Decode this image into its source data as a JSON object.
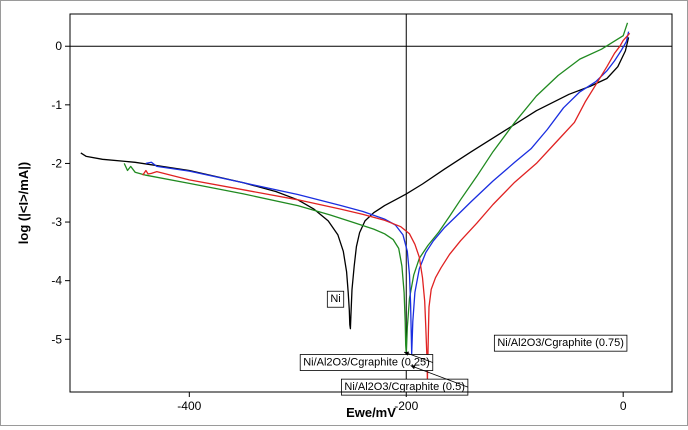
{
  "chart_data": {
    "type": "line",
    "title": "",
    "xlabel": "Ewe/mV",
    "ylabel": "log (|<I>/mA|)",
    "xlim": [
      -510,
      45
    ],
    "ylim": [
      -5.9,
      0.55
    ],
    "x_ticks": [
      -400,
      -200,
      0
    ],
    "x_tick_labels": [
      "-400",
      "-200",
      "0"
    ],
    "y_ticks": [
      0,
      -1,
      -2,
      -3,
      -4,
      -5
    ],
    "y_tick_labels": [
      "0",
      "-1",
      "-2",
      "-3",
      "-4",
      "-5"
    ],
    "grid": "major lines at x = -200 and y = 0",
    "legend": "none; series labeled by boxed annotations",
    "series": [
      {
        "name": "Ni",
        "color": "#000000",
        "x": [
          -500,
          -495,
          -480,
          -450,
          -400,
          -350,
          -320,
          -300,
          -285,
          -272,
          -263,
          -258,
          -255,
          -253.5,
          -252.5,
          -252,
          -251.5,
          -251,
          -250,
          -248,
          -246,
          -243,
          -238,
          -230,
          -220,
          -210,
          -200,
          -185,
          -165,
          -140,
          -110,
          -80,
          -50,
          -30,
          -15,
          -5,
          2,
          5
        ],
        "y": [
          -1.82,
          -1.88,
          -1.93,
          -1.98,
          -2.12,
          -2.33,
          -2.48,
          -2.62,
          -2.78,
          -2.98,
          -3.22,
          -3.5,
          -3.85,
          -4.2,
          -4.5,
          -4.75,
          -4.82,
          -4.6,
          -4.15,
          -3.75,
          -3.42,
          -3.18,
          -2.98,
          -2.84,
          -2.72,
          -2.62,
          -2.52,
          -2.35,
          -2.1,
          -1.8,
          -1.45,
          -1.1,
          -0.82,
          -0.68,
          -0.55,
          -0.35,
          -0.08,
          0.15
        ]
      },
      {
        "name": "Ni/Al2O3/Cgraphite (0.25)",
        "color": "#208a20",
        "x": [
          -460,
          -457,
          -454,
          -450,
          -440,
          -400,
          -350,
          -300,
          -270,
          -250,
          -230,
          -220,
          -212,
          -207,
          -204,
          -202,
          -201,
          -200.5,
          -200,
          -199,
          -197,
          -193,
          -188,
          -180,
          -170,
          -160,
          -150,
          -135,
          -120,
          -100,
          -80,
          -60,
          -40,
          -20,
          0,
          4
        ],
        "y": [
          -2.0,
          -2.12,
          -2.05,
          -2.15,
          -2.2,
          -2.34,
          -2.52,
          -2.72,
          -2.88,
          -3.0,
          -3.12,
          -3.2,
          -3.3,
          -3.45,
          -3.75,
          -4.2,
          -4.7,
          -5.1,
          -5.25,
          -4.8,
          -4.3,
          -3.9,
          -3.62,
          -3.4,
          -3.17,
          -2.9,
          -2.62,
          -2.22,
          -1.8,
          -1.3,
          -0.85,
          -0.5,
          -0.22,
          -0.05,
          0.18,
          0.4
        ]
      },
      {
        "name": "Ni/Al2O3/Cgraphite (0.5)",
        "color": "#1a2ee0",
        "x": [
          -440,
          -435,
          -430,
          -400,
          -350,
          -300,
          -260,
          -240,
          -220,
          -210,
          -203,
          -199,
          -197,
          -196,
          -195.5,
          -195,
          -194,
          -192,
          -188,
          -182,
          -175,
          -165,
          -155,
          -140,
          -120,
          -100,
          -85,
          -70,
          -55,
          -40,
          -25,
          -15,
          -8,
          -2,
          3,
          5
        ],
        "y": [
          -2.0,
          -1.98,
          -2.05,
          -2.13,
          -2.33,
          -2.53,
          -2.72,
          -2.82,
          -2.95,
          -3.05,
          -3.22,
          -3.5,
          -3.9,
          -4.4,
          -4.8,
          -5.25,
          -4.7,
          -4.2,
          -3.8,
          -3.52,
          -3.32,
          -3.1,
          -2.92,
          -2.65,
          -2.3,
          -1.98,
          -1.75,
          -1.42,
          -1.05,
          -0.78,
          -0.6,
          -0.42,
          -0.25,
          -0.08,
          0.08,
          0.25
        ]
      },
      {
        "name": "Ni/Al2O3/Cgraphite (0.75)",
        "color": "#e02222",
        "x": [
          -443,
          -440,
          -438,
          -435,
          -430,
          -400,
          -350,
          -300,
          -260,
          -240,
          -220,
          -205,
          -197,
          -192,
          -188,
          -185,
          -183,
          -182,
          -181,
          -180.5,
          -180,
          -179.5,
          -179,
          -177,
          -173,
          -168,
          -160,
          -150,
          -135,
          -120,
          -100,
          -80,
          -60,
          -45,
          -35,
          -25,
          -15,
          -8,
          -3,
          0,
          4,
          6
        ],
        "y": [
          -2.2,
          -2.12,
          -2.18,
          -2.17,
          -2.14,
          -2.28,
          -2.45,
          -2.62,
          -2.78,
          -2.87,
          -2.97,
          -3.08,
          -3.2,
          -3.38,
          -3.6,
          -3.95,
          -4.35,
          -4.8,
          -5.3,
          -5.7,
          -5.3,
          -4.8,
          -4.45,
          -4.15,
          -3.95,
          -3.78,
          -3.55,
          -3.32,
          -3.02,
          -2.7,
          -2.32,
          -2.0,
          -1.6,
          -1.3,
          -0.95,
          -0.65,
          -0.35,
          -0.12,
          0.0,
          0.1,
          0.18,
          0.22
        ]
      }
    ],
    "annotations": [
      {
        "text": "Ni",
        "x": -270,
        "y": -4.3
      },
      {
        "text": "Ni/Al2O3/Cgraphite (0.75)",
        "x": -116,
        "y": -5.05
      },
      {
        "text": "Ni/Al2O3/Cgraphite (0.25)",
        "x": -295,
        "y": -5.38
      },
      {
        "text": "Ni/Al2O3/Cgraphite (0.5)",
        "x": -257,
        "y": -5.8
      }
    ]
  }
}
